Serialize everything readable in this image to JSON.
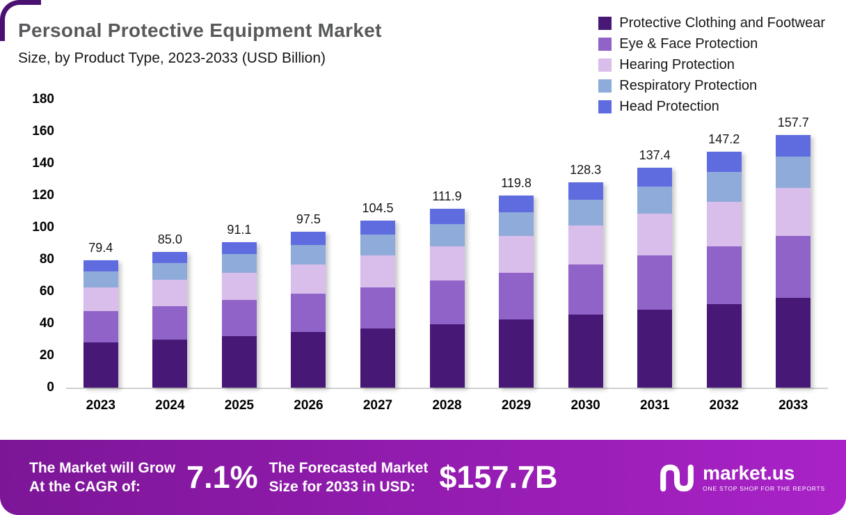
{
  "title": "Personal Protective Equipment Market",
  "subtitle": "Size, by Product Type, 2023-2033 (USD Billion)",
  "chart_data": {
    "type": "bar",
    "stacked": true,
    "title": "Personal Protective Equipment Market Size, by Product Type, 2023-2033 (USD Billion)",
    "xlabel": "",
    "ylabel": "",
    "ylim": [
      0,
      180
    ],
    "yticks": [
      0,
      20,
      40,
      60,
      80,
      100,
      120,
      140,
      160,
      180
    ],
    "grid": false,
    "legend_position": "top-right",
    "categories": [
      "2023",
      "2024",
      "2025",
      "2026",
      "2027",
      "2028",
      "2029",
      "2030",
      "2031",
      "2032",
      "2033"
    ],
    "totals": [
      79.4,
      85.0,
      91.1,
      97.5,
      104.5,
      111.9,
      119.8,
      128.3,
      137.4,
      147.2,
      157.7
    ],
    "total_labels": [
      "79.4",
      "85.0",
      "91.1",
      "97.5",
      "104.5",
      "111.9",
      "119.8",
      "128.3",
      "137.4",
      "147.2",
      "157.7"
    ],
    "series": [
      {
        "name": "Protective Clothing and Footwear",
        "color": "#471876",
        "values": [
          28.2,
          30.2,
          32.3,
          34.6,
          37.1,
          39.7,
          42.5,
          45.5,
          48.8,
          52.2,
          56.0
        ]
      },
      {
        "name": "Eye & Face Protection",
        "color": "#8f63c8",
        "values": [
          19.5,
          20.8,
          22.3,
          23.9,
          25.6,
          27.4,
          29.4,
          31.4,
          33.7,
          36.1,
          38.6
        ]
      },
      {
        "name": "Hearing Protection",
        "color": "#d9bdea",
        "values": [
          15.1,
          16.2,
          17.3,
          18.5,
          19.9,
          21.3,
          22.8,
          24.4,
          26.1,
          28.0,
          30.0
        ]
      },
      {
        "name": "Respiratory Protection",
        "color": "#8fabd9",
        "values": [
          9.9,
          10.6,
          11.4,
          12.2,
          13.1,
          14.0,
          15.0,
          16.0,
          17.2,
          18.4,
          19.7
        ]
      },
      {
        "name": "Head Protection",
        "color": "#5f6ce0",
        "values": [
          6.7,
          7.2,
          7.8,
          8.3,
          8.8,
          9.5,
          10.1,
          11.0,
          11.6,
          12.5,
          13.4
        ]
      }
    ]
  },
  "banner": {
    "growth_label_line1": "The Market will Grow",
    "growth_label_line2": "At the CAGR of:",
    "cagr_value": "7.1%",
    "forecast_label_line1": "The Forecasted Market",
    "forecast_label_line2": "Size for 2033 in USD:",
    "forecast_value": "$157.7B",
    "logo_text": "market.us",
    "logo_tagline": "ONE STOP SHOP FOR THE REPORTS"
  },
  "theme": {
    "banner_gradient_left": "#7c1697",
    "banner_gradient_right": "#a922c7",
    "corner_accent": "#4a1173",
    "title_color": "#58595b",
    "axis_line_color": "#cfcfcf"
  }
}
